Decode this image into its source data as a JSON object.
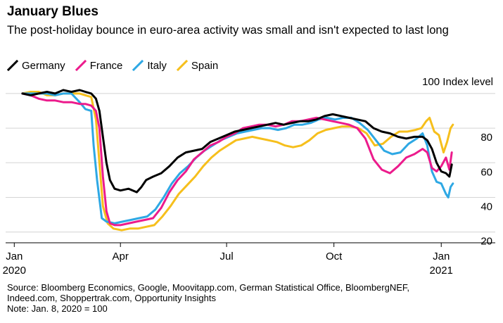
{
  "title": "January Blues",
  "subtitle": "The post-holiday bounce in euro-area activity was small and isn't expected to last long",
  "source": {
    "line1": "Source: Bloomberg Economics, Google, Moovitapp.com, German Statistical Office, BloombergNEF,",
    "line2": "Indeed.com, Shoppertrak.com, Opportunity Insights",
    "note": "Note: Jan. 8, 2020 = 100"
  },
  "chart_data": {
    "type": "line",
    "unit_label": "100 Index level",
    "ylim": [
      15,
      102
    ],
    "xlim": [
      "2019-12-27",
      "2021-01-28"
    ],
    "y_ticks": [
      20,
      40,
      60,
      80
    ],
    "x_ticks": [
      {
        "date": "2020-01-01",
        "label": "Jan",
        "sublabel": "2020"
      },
      {
        "date": "2020-04-01",
        "label": "Apr",
        "sublabel": ""
      },
      {
        "date": "2020-07-01",
        "label": "Jul",
        "sublabel": ""
      },
      {
        "date": "2020-10-01",
        "label": "Oct",
        "sublabel": ""
      },
      {
        "date": "2021-01-01",
        "label": "Jan",
        "sublabel": "2021"
      }
    ],
    "grid": true,
    "legend_position": "top-left",
    "series": [
      {
        "name": "Germany",
        "color": "#000000",
        "points": [
          [
            "2020-01-08",
            100
          ],
          [
            "2020-01-15",
            99
          ],
          [
            "2020-01-22",
            100
          ],
          [
            "2020-01-29",
            101
          ],
          [
            "2020-02-05",
            100
          ],
          [
            "2020-02-12",
            102
          ],
          [
            "2020-02-19",
            101
          ],
          [
            "2020-02-26",
            102
          ],
          [
            "2020-03-02",
            101
          ],
          [
            "2020-03-07",
            100
          ],
          [
            "2020-03-11",
            97
          ],
          [
            "2020-03-14",
            90
          ],
          [
            "2020-03-17",
            75
          ],
          [
            "2020-03-20",
            60
          ],
          [
            "2020-03-23",
            50
          ],
          [
            "2020-03-27",
            45
          ],
          [
            "2020-04-01",
            44
          ],
          [
            "2020-04-08",
            45
          ],
          [
            "2020-04-15",
            43
          ],
          [
            "2020-04-19",
            46
          ],
          [
            "2020-04-23",
            50
          ],
          [
            "2020-04-29",
            52
          ],
          [
            "2020-05-06",
            54
          ],
          [
            "2020-05-13",
            58
          ],
          [
            "2020-05-20",
            63
          ],
          [
            "2020-05-27",
            66
          ],
          [
            "2020-06-03",
            67
          ],
          [
            "2020-06-10",
            68
          ],
          [
            "2020-06-17",
            72
          ],
          [
            "2020-06-24",
            74
          ],
          [
            "2020-07-01",
            76
          ],
          [
            "2020-07-08",
            78
          ],
          [
            "2020-07-15",
            79
          ],
          [
            "2020-07-22",
            80
          ],
          [
            "2020-07-29",
            81
          ],
          [
            "2020-08-05",
            82
          ],
          [
            "2020-08-12",
            83
          ],
          [
            "2020-08-19",
            82
          ],
          [
            "2020-08-26",
            83
          ],
          [
            "2020-09-02",
            84
          ],
          [
            "2020-09-09",
            84
          ],
          [
            "2020-09-16",
            85
          ],
          [
            "2020-09-23",
            87
          ],
          [
            "2020-09-30",
            88
          ],
          [
            "2020-10-07",
            87
          ],
          [
            "2020-10-14",
            86
          ],
          [
            "2020-10-21",
            85
          ],
          [
            "2020-10-28",
            84
          ],
          [
            "2020-11-04",
            80
          ],
          [
            "2020-11-11",
            78
          ],
          [
            "2020-11-18",
            77
          ],
          [
            "2020-11-25",
            75
          ],
          [
            "2020-12-02",
            74
          ],
          [
            "2020-12-09",
            75
          ],
          [
            "2020-12-16",
            75
          ],
          [
            "2020-12-20",
            73
          ],
          [
            "2020-12-24",
            68
          ],
          [
            "2020-12-28",
            60
          ],
          [
            "2021-01-01",
            55
          ],
          [
            "2021-01-05",
            54
          ],
          [
            "2021-01-08",
            52
          ],
          [
            "2021-01-10",
            59
          ]
        ]
      },
      {
        "name": "France",
        "color": "#ec1b8c",
        "points": [
          [
            "2020-01-08",
            100
          ],
          [
            "2020-01-15",
            99
          ],
          [
            "2020-01-22",
            97
          ],
          [
            "2020-01-29",
            96
          ],
          [
            "2020-02-05",
            96
          ],
          [
            "2020-02-12",
            95
          ],
          [
            "2020-02-19",
            95
          ],
          [
            "2020-02-26",
            94
          ],
          [
            "2020-03-02",
            94
          ],
          [
            "2020-03-07",
            93
          ],
          [
            "2020-03-11",
            90
          ],
          [
            "2020-03-14",
            80
          ],
          [
            "2020-03-17",
            52
          ],
          [
            "2020-03-20",
            32
          ],
          [
            "2020-03-23",
            25
          ],
          [
            "2020-03-27",
            24
          ],
          [
            "2020-04-01",
            24
          ],
          [
            "2020-04-08",
            25
          ],
          [
            "2020-04-15",
            26
          ],
          [
            "2020-04-22",
            27
          ],
          [
            "2020-04-29",
            28
          ],
          [
            "2020-05-06",
            34
          ],
          [
            "2020-05-13",
            43
          ],
          [
            "2020-05-20",
            50
          ],
          [
            "2020-05-27",
            55
          ],
          [
            "2020-06-03",
            62
          ],
          [
            "2020-06-10",
            66
          ],
          [
            "2020-06-17",
            70
          ],
          [
            "2020-06-24",
            72
          ],
          [
            "2020-07-01",
            75
          ],
          [
            "2020-07-08",
            77
          ],
          [
            "2020-07-15",
            80
          ],
          [
            "2020-07-22",
            81
          ],
          [
            "2020-07-29",
            82
          ],
          [
            "2020-08-05",
            82
          ],
          [
            "2020-08-12",
            81
          ],
          [
            "2020-08-19",
            82
          ],
          [
            "2020-08-26",
            84
          ],
          [
            "2020-09-02",
            84
          ],
          [
            "2020-09-09",
            85
          ],
          [
            "2020-09-16",
            86
          ],
          [
            "2020-09-23",
            85
          ],
          [
            "2020-09-30",
            84
          ],
          [
            "2020-10-07",
            83
          ],
          [
            "2020-10-14",
            82
          ],
          [
            "2020-10-21",
            80
          ],
          [
            "2020-10-28",
            74
          ],
          [
            "2020-11-04",
            62
          ],
          [
            "2020-11-11",
            56
          ],
          [
            "2020-11-18",
            54
          ],
          [
            "2020-11-25",
            58
          ],
          [
            "2020-12-02",
            63
          ],
          [
            "2020-12-09",
            65
          ],
          [
            "2020-12-16",
            68
          ],
          [
            "2020-12-20",
            66
          ],
          [
            "2020-12-24",
            57
          ],
          [
            "2020-12-28",
            55
          ],
          [
            "2021-01-01",
            58
          ],
          [
            "2021-01-05",
            63
          ],
          [
            "2021-01-08",
            56
          ],
          [
            "2021-01-10",
            66
          ]
        ]
      },
      {
        "name": "Italy",
        "color": "#2ea8e4",
        "points": [
          [
            "2020-01-08",
            100
          ],
          [
            "2020-01-15",
            100
          ],
          [
            "2020-01-22",
            100
          ],
          [
            "2020-01-29",
            100
          ],
          [
            "2020-02-05",
            99
          ],
          [
            "2020-02-12",
            100
          ],
          [
            "2020-02-19",
            100
          ],
          [
            "2020-02-26",
            95
          ],
          [
            "2020-03-02",
            91
          ],
          [
            "2020-03-07",
            90
          ],
          [
            "2020-03-09",
            70
          ],
          [
            "2020-03-12",
            50
          ],
          [
            "2020-03-16",
            28
          ],
          [
            "2020-03-20",
            26
          ],
          [
            "2020-03-27",
            25
          ],
          [
            "2020-04-03",
            26
          ],
          [
            "2020-04-10",
            27
          ],
          [
            "2020-04-17",
            28
          ],
          [
            "2020-04-24",
            29
          ],
          [
            "2020-05-01",
            33
          ],
          [
            "2020-05-08",
            40
          ],
          [
            "2020-05-15",
            48
          ],
          [
            "2020-05-22",
            54
          ],
          [
            "2020-05-29",
            58
          ],
          [
            "2020-06-05",
            63
          ],
          [
            "2020-06-12",
            67
          ],
          [
            "2020-06-19",
            70
          ],
          [
            "2020-06-26",
            73
          ],
          [
            "2020-07-03",
            75
          ],
          [
            "2020-07-10",
            77
          ],
          [
            "2020-07-17",
            78
          ],
          [
            "2020-07-24",
            79
          ],
          [
            "2020-07-31",
            80
          ],
          [
            "2020-08-07",
            80
          ],
          [
            "2020-08-14",
            79
          ],
          [
            "2020-08-21",
            80
          ],
          [
            "2020-08-28",
            82
          ],
          [
            "2020-09-04",
            82
          ],
          [
            "2020-09-11",
            83
          ],
          [
            "2020-09-18",
            85
          ],
          [
            "2020-09-25",
            86
          ],
          [
            "2020-10-02",
            85
          ],
          [
            "2020-10-09",
            86
          ],
          [
            "2020-10-16",
            86
          ],
          [
            "2020-10-23",
            83
          ],
          [
            "2020-10-30",
            79
          ],
          [
            "2020-11-06",
            73
          ],
          [
            "2020-11-13",
            67
          ],
          [
            "2020-11-20",
            65
          ],
          [
            "2020-11-27",
            66
          ],
          [
            "2020-12-04",
            71
          ],
          [
            "2020-12-11",
            74
          ],
          [
            "2020-12-16",
            77
          ],
          [
            "2020-12-20",
            70
          ],
          [
            "2020-12-24",
            55
          ],
          [
            "2020-12-28",
            49
          ],
          [
            "2021-01-01",
            48
          ],
          [
            "2021-01-05",
            42
          ],
          [
            "2021-01-07",
            40
          ],
          [
            "2021-01-09",
            46
          ],
          [
            "2021-01-11",
            48
          ]
        ]
      },
      {
        "name": "Spain",
        "color": "#f6bf1c",
        "points": [
          [
            "2020-01-08",
            100
          ],
          [
            "2020-01-15",
            101
          ],
          [
            "2020-01-22",
            101
          ],
          [
            "2020-01-29",
            99
          ],
          [
            "2020-02-05",
            99
          ],
          [
            "2020-02-12",
            100
          ],
          [
            "2020-02-19",
            100
          ],
          [
            "2020-02-26",
            100
          ],
          [
            "2020-03-02",
            99
          ],
          [
            "2020-03-07",
            98
          ],
          [
            "2020-03-11",
            85
          ],
          [
            "2020-03-14",
            60
          ],
          [
            "2020-03-17",
            35
          ],
          [
            "2020-03-21",
            25
          ],
          [
            "2020-03-26",
            22
          ],
          [
            "2020-04-02",
            21
          ],
          [
            "2020-04-09",
            22
          ],
          [
            "2020-04-16",
            22
          ],
          [
            "2020-04-23",
            23
          ],
          [
            "2020-04-30",
            24
          ],
          [
            "2020-05-07",
            29
          ],
          [
            "2020-05-14",
            35
          ],
          [
            "2020-05-21",
            42
          ],
          [
            "2020-05-28",
            47
          ],
          [
            "2020-06-04",
            52
          ],
          [
            "2020-06-11",
            58
          ],
          [
            "2020-06-18",
            63
          ],
          [
            "2020-06-25",
            67
          ],
          [
            "2020-07-02",
            70
          ],
          [
            "2020-07-09",
            73
          ],
          [
            "2020-07-16",
            74
          ],
          [
            "2020-07-23",
            75
          ],
          [
            "2020-07-30",
            74
          ],
          [
            "2020-08-06",
            73
          ],
          [
            "2020-08-13",
            72
          ],
          [
            "2020-08-20",
            70
          ],
          [
            "2020-08-27",
            69
          ],
          [
            "2020-09-03",
            70
          ],
          [
            "2020-09-10",
            73
          ],
          [
            "2020-09-17",
            77
          ],
          [
            "2020-09-24",
            79
          ],
          [
            "2020-10-01",
            80
          ],
          [
            "2020-10-08",
            81
          ],
          [
            "2020-10-15",
            81
          ],
          [
            "2020-10-22",
            80
          ],
          [
            "2020-10-29",
            77
          ],
          [
            "2020-11-05",
            70
          ],
          [
            "2020-11-12",
            71
          ],
          [
            "2020-11-19",
            75
          ],
          [
            "2020-11-26",
            78
          ],
          [
            "2020-12-03",
            78
          ],
          [
            "2020-12-10",
            79
          ],
          [
            "2020-12-15",
            80
          ],
          [
            "2020-12-19",
            84
          ],
          [
            "2020-12-22",
            86
          ],
          [
            "2020-12-26",
            78
          ],
          [
            "2020-12-30",
            76
          ],
          [
            "2021-01-03",
            66
          ],
          [
            "2021-01-06",
            72
          ],
          [
            "2021-01-09",
            80
          ],
          [
            "2021-01-11",
            82
          ]
        ]
      }
    ]
  }
}
